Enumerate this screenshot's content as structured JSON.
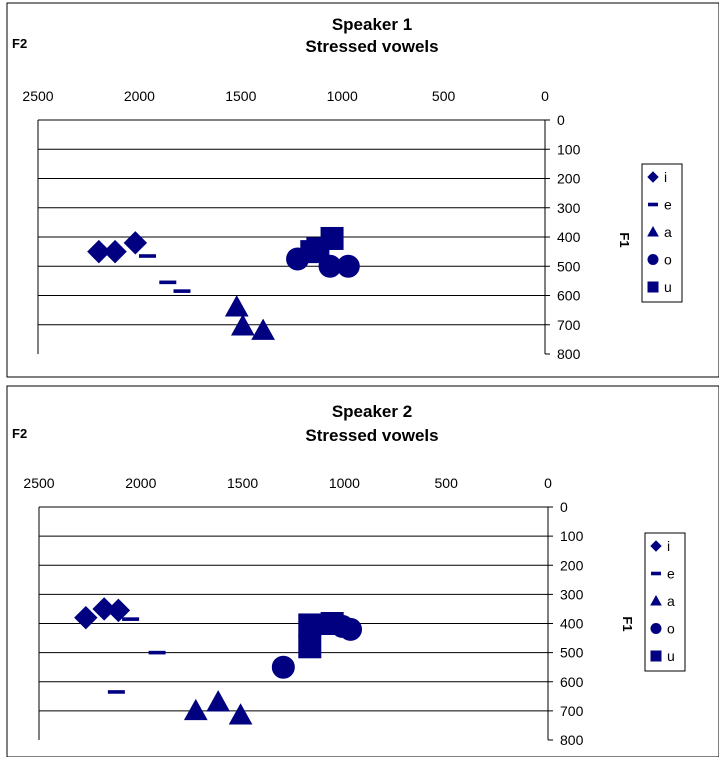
{
  "chart_data": [
    {
      "type": "scatter",
      "title": "Speaker 1\nStressed vowels",
      "xlabel": "F2",
      "ylabel": "F1",
      "xlim": [
        2500,
        0
      ],
      "ylim": [
        800,
        0
      ],
      "x_ticks": [
        2500,
        2000,
        1500,
        1000,
        500,
        0
      ],
      "y_ticks": [
        0,
        100,
        200,
        300,
        400,
        500,
        600,
        700,
        800
      ],
      "grid": true,
      "legend": "right",
      "series": [
        {
          "name": "i",
          "marker": "diamond",
          "points": [
            [
              2200,
              450
            ],
            [
              2120,
              450
            ],
            [
              2020,
              420
            ]
          ]
        },
        {
          "name": "e",
          "marker": "dash",
          "points": [
            [
              1960,
              465
            ],
            [
              1860,
              555
            ],
            [
              1790,
              585
            ]
          ]
        },
        {
          "name": "a",
          "marker": "triangle",
          "points": [
            [
              1520,
              640
            ],
            [
              1490,
              705
            ],
            [
              1390,
              720
            ]
          ]
        },
        {
          "name": "o",
          "marker": "circle",
          "points": [
            [
              1220,
              475
            ],
            [
              1060,
              500
            ],
            [
              970,
              500
            ]
          ]
        },
        {
          "name": "u",
          "marker": "square",
          "points": [
            [
              1050,
              405
            ],
            [
              1120,
              440
            ],
            [
              1150,
              450
            ]
          ]
        }
      ]
    },
    {
      "type": "scatter",
      "title": "Speaker 2\nStressed vowels",
      "xlabel": "F2",
      "ylabel": "F1",
      "xlim": [
        2500,
        0
      ],
      "ylim": [
        800,
        0
      ],
      "x_ticks": [
        2500,
        2000,
        1500,
        1000,
        500,
        0
      ],
      "y_ticks": [
        0,
        100,
        200,
        300,
        400,
        500,
        600,
        700,
        800
      ],
      "grid": true,
      "legend": "right",
      "series": [
        {
          "name": "i",
          "marker": "diamond",
          "points": [
            [
              2270,
              380
            ],
            [
              2180,
              350
            ],
            [
              2110,
              355
            ]
          ]
        },
        {
          "name": "e",
          "marker": "dash",
          "points": [
            [
              2050,
              385
            ],
            [
              1920,
              500
            ],
            [
              2120,
              635
            ]
          ]
        },
        {
          "name": "a",
          "marker": "triangle",
          "points": [
            [
              1730,
              700
            ],
            [
              1620,
              670
            ],
            [
              1510,
              715
            ]
          ]
        },
        {
          "name": "o",
          "marker": "circle",
          "points": [
            [
              1300,
              550
            ],
            [
              1010,
              410
            ],
            [
              970,
              420
            ]
          ]
        },
        {
          "name": "u",
          "marker": "square",
          "points": [
            [
              1170,
              405
            ],
            [
              1170,
              480
            ],
            [
              1060,
              400
            ]
          ]
        }
      ]
    }
  ],
  "colors": {
    "marker": "#000080"
  }
}
